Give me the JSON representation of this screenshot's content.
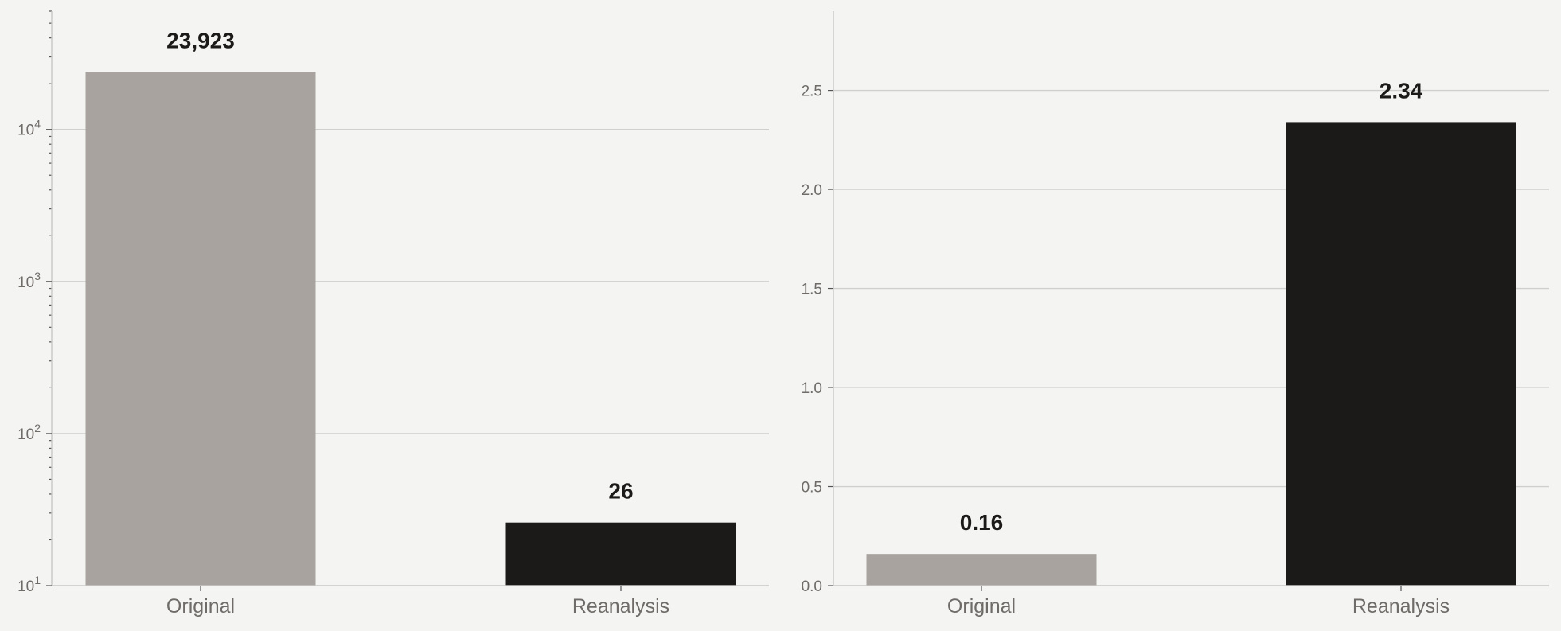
{
  "chart_data": [
    {
      "type": "bar",
      "categories": [
        "Original",
        "Reanalysis"
      ],
      "values": [
        23923,
        26
      ],
      "value_labels": [
        "23,923",
        "26"
      ],
      "colors": [
        "#a8a39f",
        "#1c1a18"
      ],
      "yscale": "log",
      "ylim": [
        10,
        60000
      ],
      "yticks": [
        10,
        100,
        1000,
        10000
      ],
      "ytick_base": "10",
      "ytick_exponents": [
        "1",
        "2",
        "3",
        "4"
      ],
      "grid": true,
      "title": "",
      "xlabel": "",
      "ylabel": ""
    },
    {
      "type": "bar",
      "categories": [
        "Original",
        "Reanalysis"
      ],
      "values": [
        0.16,
        2.34
      ],
      "value_labels": [
        "0.16",
        "2.34"
      ],
      "colors": [
        "#a8a39f",
        "#1c1a18"
      ],
      "yscale": "linear",
      "ylim": [
        0,
        2.9
      ],
      "yticks": [
        0,
        0.5,
        1.0,
        1.5,
        2.0,
        2.5
      ],
      "ytick_labels": [
        "0.0",
        "0.5",
        "1.0",
        "1.5",
        "2.0",
        "2.5"
      ],
      "grid": true,
      "title": "",
      "xlabel": "",
      "ylabel": ""
    }
  ]
}
